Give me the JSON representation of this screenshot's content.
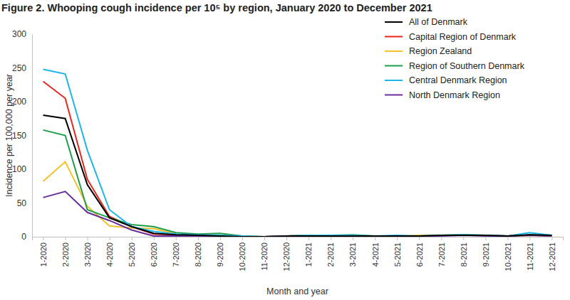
{
  "chart_data": {
    "type": "line",
    "title": "Figure 2. Whooping cough incidence per 10⁵ by region, January 2020 to December 2021",
    "x_label": "Month and year",
    "y_label": "Incidence per 100,000 per year",
    "categories": [
      "1-2020",
      "2-2020",
      "3-2020",
      "4-2020",
      "5-2020",
      "6-2020",
      "7-2020",
      "8-2020",
      "9-2020",
      "10-2020",
      "11-2020",
      "12-2020",
      "1-2021",
      "2-2021",
      "3-2021",
      "4-2021",
      "5-2021",
      "6-2021",
      "7-2021",
      "8-2021",
      "9-2021",
      "10-2021",
      "11-2021",
      "12-2021"
    ],
    "ylim": [
      0,
      300
    ],
    "yticks": [
      0,
      50,
      100,
      150,
      200,
      250,
      300
    ],
    "grid": false,
    "legend": "upper right",
    "series": [
      {
        "name": "All of Denmark",
        "color": "#000000",
        "values": [
          180,
          175,
          77,
          28,
          15,
          5,
          3,
          2,
          1,
          0,
          0,
          1,
          1,
          1,
          1,
          1,
          1,
          1,
          2,
          2,
          2,
          1,
          3,
          2
        ]
      },
      {
        "name": "Capital Region of Denmark",
        "color": "#e8251f",
        "values": [
          230,
          205,
          85,
          30,
          15,
          4,
          3,
          2,
          1,
          0,
          0,
          1,
          2,
          2,
          1,
          1,
          1,
          1,
          2,
          2,
          2,
          1,
          2,
          2
        ]
      },
      {
        "name": "Region Zealand",
        "color": "#f5c02a",
        "values": [
          82,
          111,
          45,
          16,
          13,
          12,
          4,
          3,
          2,
          1,
          0,
          1,
          2,
          2,
          2,
          1,
          1,
          2,
          2,
          3,
          2,
          1,
          2,
          1
        ]
      },
      {
        "name": "Region of Southern Denmark",
        "color": "#1e9e4a",
        "values": [
          158,
          150,
          40,
          28,
          18,
          15,
          6,
          4,
          5,
          1,
          0,
          1,
          2,
          2,
          3,
          1,
          1,
          1,
          2,
          3,
          2,
          1,
          3,
          2
        ]
      },
      {
        "name": "Central Denmark Region",
        "color": "#1fb5e8",
        "values": [
          248,
          241,
          128,
          40,
          15,
          8,
          4,
          3,
          2,
          1,
          0,
          1,
          2,
          2,
          2,
          1,
          2,
          1,
          2,
          3,
          2,
          1,
          6,
          2
        ]
      },
      {
        "name": "North Denmark Region",
        "color": "#6a2f9a",
        "values": [
          58,
          67,
          36,
          24,
          10,
          1,
          1,
          1,
          0,
          0,
          0,
          1,
          1,
          1,
          1,
          1,
          1,
          1,
          1,
          2,
          1,
          1,
          2,
          1
        ]
      }
    ]
  }
}
